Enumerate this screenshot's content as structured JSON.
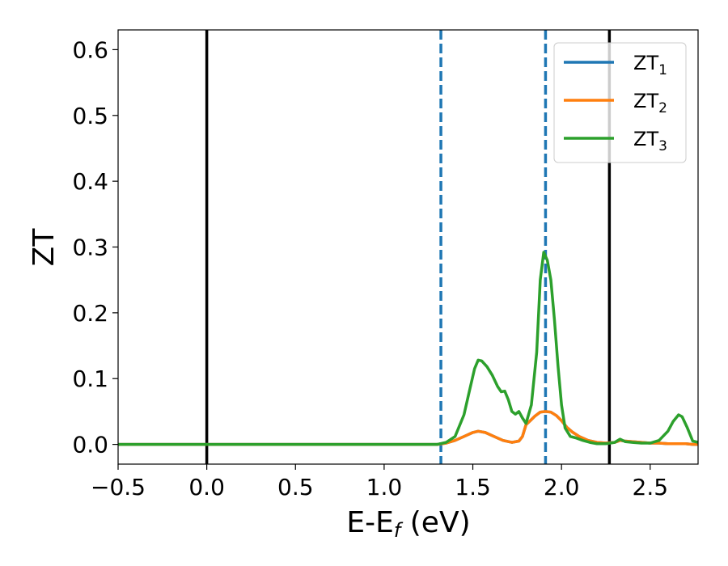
{
  "chart_data": {
    "type": "line",
    "xlabel": {
      "main": "E-E",
      "sub": "f",
      "tail": " (eV)"
    },
    "ylabel": "ZT",
    "xlim": [
      -0.5,
      2.77
    ],
    "ylim": [
      -0.03,
      0.63
    ],
    "xticks": [
      -0.5,
      0.0,
      0.5,
      1.0,
      1.5,
      2.0,
      2.5
    ],
    "xtick_labels": [
      "−0.5",
      "0.0",
      "0.5",
      "1.0",
      "1.5",
      "2.0",
      "2.5"
    ],
    "yticks": [
      0.0,
      0.1,
      0.2,
      0.3,
      0.4,
      0.5,
      0.6
    ],
    "ytick_labels": [
      "0.0",
      "0.1",
      "0.2",
      "0.3",
      "0.4",
      "0.5",
      "0.6"
    ],
    "grid": false,
    "legend_position": "top-right",
    "vlines": [
      {
        "x": 0.0,
        "style": "solid",
        "color": "#000000"
      },
      {
        "x": 2.27,
        "style": "solid",
        "color": "#000000"
      },
      {
        "x": 1.32,
        "style": "dashed",
        "color": "#1f77b4"
      },
      {
        "x": 1.91,
        "style": "dashed",
        "color": "#1f77b4"
      }
    ],
    "series": [
      {
        "name": "ZT",
        "sub": "1",
        "color": "#1f77b4",
        "x": [
          -0.5,
          1.3,
          1.35,
          1.4,
          1.45,
          1.5,
          1.53,
          1.57,
          1.62,
          1.67,
          1.72,
          1.76,
          1.78,
          1.8,
          1.82,
          1.85,
          1.88,
          1.91,
          1.94,
          1.97,
          2.0,
          2.03,
          2.06,
          2.1,
          2.15,
          2.2,
          2.25,
          2.3,
          2.33,
          2.36,
          2.4,
          2.45,
          2.5,
          2.55,
          2.6,
          2.65,
          2.7,
          2.74,
          2.77
        ],
        "y": [
          0.0,
          0.0,
          0.002,
          0.006,
          0.012,
          0.018,
          0.02,
          0.018,
          0.012,
          0.006,
          0.003,
          0.005,
          0.012,
          0.03,
          0.035,
          0.043,
          0.049,
          0.05,
          0.049,
          0.044,
          0.036,
          0.026,
          0.019,
          0.012,
          0.006,
          0.003,
          0.002,
          0.003,
          0.006,
          0.005,
          0.004,
          0.003,
          0.002,
          0.002,
          0.001,
          0.001,
          0.001,
          0.0,
          0.0
        ]
      },
      {
        "name": "ZT",
        "sub": "2",
        "color": "#ff7f0e",
        "x": [
          -0.5,
          1.3,
          1.35,
          1.4,
          1.45,
          1.5,
          1.53,
          1.57,
          1.62,
          1.67,
          1.72,
          1.76,
          1.78,
          1.8,
          1.82,
          1.85,
          1.88,
          1.91,
          1.94,
          1.97,
          2.0,
          2.03,
          2.06,
          2.1,
          2.15,
          2.2,
          2.25,
          2.3,
          2.33,
          2.36,
          2.4,
          2.45,
          2.5,
          2.55,
          2.6,
          2.65,
          2.7,
          2.74,
          2.77
        ],
        "y": [
          0.0,
          0.0,
          0.002,
          0.006,
          0.012,
          0.018,
          0.02,
          0.018,
          0.012,
          0.006,
          0.003,
          0.005,
          0.012,
          0.03,
          0.035,
          0.043,
          0.049,
          0.05,
          0.049,
          0.044,
          0.036,
          0.026,
          0.019,
          0.012,
          0.006,
          0.003,
          0.002,
          0.003,
          0.006,
          0.005,
          0.004,
          0.003,
          0.002,
          0.002,
          0.001,
          0.001,
          0.001,
          0.0,
          0.0
        ]
      },
      {
        "name": "ZT",
        "sub": "3",
        "color": "#2ca02c",
        "x": [
          -0.5,
          1.3,
          1.35,
          1.4,
          1.45,
          1.48,
          1.51,
          1.53,
          1.55,
          1.58,
          1.61,
          1.64,
          1.66,
          1.68,
          1.7,
          1.72,
          1.74,
          1.76,
          1.78,
          1.8,
          1.83,
          1.86,
          1.88,
          1.9,
          1.92,
          1.94,
          1.96,
          1.98,
          2.0,
          2.02,
          2.05,
          2.08,
          2.12,
          2.16,
          2.2,
          2.25,
          2.3,
          2.33,
          2.36,
          2.4,
          2.45,
          2.5,
          2.55,
          2.6,
          2.63,
          2.66,
          2.68,
          2.71,
          2.74,
          2.77
        ],
        "y": [
          0.0,
          0.0,
          0.003,
          0.012,
          0.045,
          0.08,
          0.115,
          0.128,
          0.127,
          0.118,
          0.105,
          0.088,
          0.08,
          0.081,
          0.068,
          0.05,
          0.046,
          0.05,
          0.04,
          0.032,
          0.06,
          0.14,
          0.25,
          0.292,
          0.28,
          0.25,
          0.19,
          0.12,
          0.06,
          0.025,
          0.012,
          0.01,
          0.006,
          0.003,
          0.001,
          0.001,
          0.003,
          0.008,
          0.004,
          0.003,
          0.002,
          0.002,
          0.006,
          0.02,
          0.035,
          0.045,
          0.042,
          0.025,
          0.005,
          0.003
        ]
      }
    ]
  }
}
